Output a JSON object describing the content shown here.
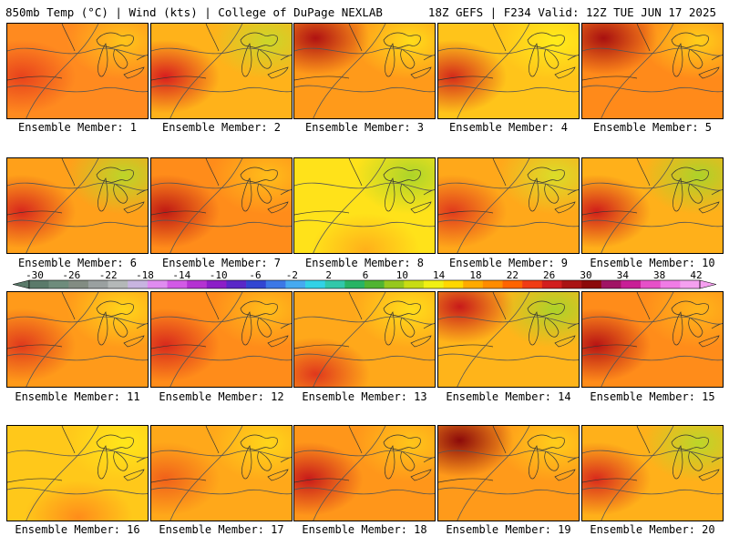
{
  "header": {
    "left": "850mb Temp (°C) | Wind (kts) | College of DuPage NEXLAB",
    "right": "18Z GEFS | F234 Valid: 12Z TUE JUN 17 2025"
  },
  "panels": [
    {
      "label": "Ensemble Member: 1",
      "base": "#ff8a1f",
      "hot": "#e8421c",
      "hot_at": "left",
      "cool": "#ffc81a"
    },
    {
      "label": "Ensemble Member: 2",
      "base": "#ffb21a",
      "hot": "#d81e1e",
      "hot_at": "left",
      "cool": "#c8d82a"
    },
    {
      "label": "Ensemble Member: 3",
      "base": "#ff9a1a",
      "hot": "#b01212",
      "hot_at": "topleft",
      "cool": "#ffe01a"
    },
    {
      "label": "Ensemble Member: 4",
      "base": "#ffc41a",
      "hot": "#d42a1a",
      "hot_at": "left",
      "cool": "#ffee1a"
    },
    {
      "label": "Ensemble Member: 5",
      "base": "#ff8a1a",
      "hot": "#a81010",
      "hot_at": "topleft",
      "cool": "#ffd21a"
    },
    {
      "label": "Ensemble Member: 6",
      "base": "#ffa01a",
      "hot": "#d8281c",
      "hot_at": "left",
      "cool": "#b8d82a"
    },
    {
      "label": "Ensemble Member: 7",
      "base": "#ff8c1a",
      "hot": "#c01a14",
      "hot_at": "left",
      "cool": "#ffc01a"
    },
    {
      "label": "Ensemble Member: 8",
      "base": "#ffe21a",
      "hot": "#ffb01a",
      "hot_at": "bottom",
      "cool": "#a8d42a"
    },
    {
      "label": "Ensemble Member: 9",
      "base": "#ffa81a",
      "hot": "#e03a1c",
      "hot_at": "left",
      "cool": "#d8e02a"
    },
    {
      "label": "Ensemble Member: 10",
      "base": "#ffb01a",
      "hot": "#d01e1a",
      "hot_at": "left",
      "cool": "#a8d42a"
    },
    {
      "label": "Ensemble Member: 11",
      "base": "#ff9a1a",
      "hot": "#e03a1c",
      "hot_at": "left",
      "cool": "#ffd81a"
    },
    {
      "label": "Ensemble Member: 12",
      "base": "#ff8c1a",
      "hot": "#d82a1c",
      "hot_at": "left",
      "cool": "#ffc01a"
    },
    {
      "label": "Ensemble Member: 13",
      "base": "#ffa81a",
      "hot": "#e0381c",
      "hot_at": "bottomleft",
      "cool": "#ffe01a"
    },
    {
      "label": "Ensemble Member: 14",
      "base": "#ffb41a",
      "hot": "#c81a1a",
      "hot_at": "topleft",
      "cool": "#a8d42a"
    },
    {
      "label": "Ensemble Member: 15",
      "base": "#ff8c1a",
      "hot": "#b81414",
      "hot_at": "left",
      "cool": "#ffb81a"
    },
    {
      "label": "Ensemble Member: 16",
      "base": "#ffc81a",
      "hot": "#ff8c1a",
      "hot_at": "bottom",
      "cool": "#ffe81a"
    },
    {
      "label": "Ensemble Member: 17",
      "base": "#ffa81a",
      "hot": "#f0601a",
      "hot_at": "left",
      "cool": "#ffd81a"
    },
    {
      "label": "Ensemble Member: 18",
      "base": "#ff961a",
      "hot": "#c81a1a",
      "hot_at": "left",
      "cool": "#ffc81a"
    },
    {
      "label": "Ensemble Member: 19",
      "base": "#ff9a1a",
      "hot": "#8c0a0a",
      "hot_at": "topleft",
      "cool": "#ffd01a"
    },
    {
      "label": "Ensemble Member: 20",
      "base": "#ffb01a",
      "hot": "#d82a1c",
      "hot_at": "left",
      "cool": "#b8d82a"
    }
  ],
  "colorbar": {
    "labels": [
      "-30",
      "-26",
      "-22",
      "-18",
      "-14",
      "-10",
      "-6",
      "-2",
      "2",
      "6",
      "10",
      "14",
      "18",
      "22",
      "26",
      "30",
      "34",
      "38",
      "42"
    ],
    "colors": [
      "#5a7a6a",
      "#6e8c7c",
      "#828c82",
      "#9aa0a0",
      "#b4b8b8",
      "#c8b4e0",
      "#e08cf0",
      "#d25ae6",
      "#b432d2",
      "#8c1ec8",
      "#5a28c8",
      "#3246d2",
      "#3c78e6",
      "#46aaf0",
      "#32d2e6",
      "#32c8aa",
      "#28b464",
      "#50b432",
      "#96c81e",
      "#c8dc14",
      "#f0f014",
      "#ffd700",
      "#ffaa00",
      "#ff8c00",
      "#ff6400",
      "#f03c14",
      "#d21e1e",
      "#aa1414",
      "#8c0a0a",
      "#a01464",
      "#c81e96",
      "#e650c8",
      "#f07ce6",
      "#f5a0f0"
    ]
  }
}
